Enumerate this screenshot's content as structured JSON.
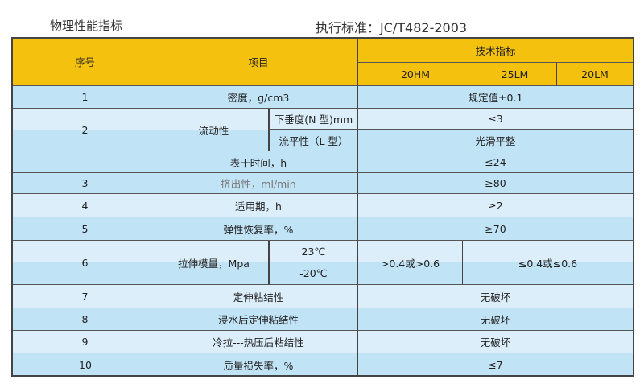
{
  "title_left": "物理性能指标",
  "title_right": "执行标准：JC/T482-2003",
  "header": {
    "no": "序号",
    "item": "项目",
    "spec": "技术指标",
    "grades": [
      "20HM",
      "25LM",
      "20LM"
    ]
  },
  "rows": [
    {
      "no": "1",
      "item": "密度，g/cm3",
      "value": "规定值±0.1"
    },
    {
      "no": "2",
      "item": "流动性",
      "sub": [
        {
          "item": "下垂度(N 型)mm",
          "value": "≤3"
        },
        {
          "item": "流平性（L 型）",
          "value": "光滑平整"
        }
      ]
    },
    {
      "no": "",
      "item": "表干时间，h",
      "value": "≤24"
    },
    {
      "no": "3",
      "item": "挤出性，ml/min",
      "value": "≥80"
    },
    {
      "no": "4",
      "item": "适用期，h",
      "value": "≥2"
    },
    {
      "no": "5",
      "item": "弹性恢复率，%",
      "value": "≥70"
    },
    {
      "no": "6",
      "item": "拉伸模量，Mpa",
      "sub": [
        {
          "item": "23℃"
        },
        {
          "item": "-20℃"
        }
      ],
      "value_a": ">0.4或>0.6",
      "value_b": "≤0.4或≤0.6"
    },
    {
      "no": "7",
      "item": "定伸粘结性",
      "value": "无破坏"
    },
    {
      "no": "8",
      "item": "浸水后定伸粘结性",
      "value": "无破坏"
    },
    {
      "no": "9",
      "item": "冷拉---热压后粘结性",
      "value": "无破坏"
    },
    {
      "no": "10",
      "item": "质量损失率，%",
      "value": "≤7"
    }
  ],
  "colors": {
    "header": "#f4c20e",
    "row_light": "#dbeefa",
    "row_dark": "#c1e3f6",
    "border": "#444444"
  }
}
